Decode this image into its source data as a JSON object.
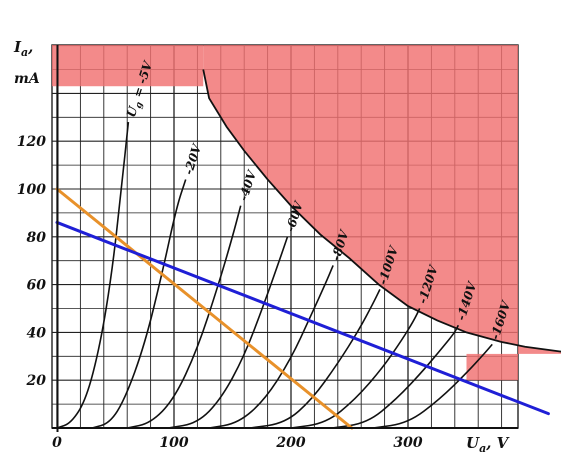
{
  "chart_data": {
    "type": "line",
    "title": "",
    "ylabel_line1": "I",
    "ylabel_sub": "a",
    "ylabel_comma": ",",
    "ylabel_unit": "mA",
    "xlabel_main": "U",
    "xlabel_sub": "a",
    "xlabel_unit": ", V",
    "xlim": [
      0,
      390
    ],
    "ylim": [
      0,
      160
    ],
    "x_ticks": [
      {
        "value": 0,
        "label": "0"
      },
      {
        "value": 100,
        "label": "100"
      },
      {
        "value": 200,
        "label": "200"
      },
      {
        "value": 300,
        "label": "300"
      }
    ],
    "y_ticks": [
      {
        "value": 20,
        "label": "20"
      },
      {
        "value": 40,
        "label": "40"
      },
      {
        "value": 60,
        "label": "60"
      },
      {
        "value": 80,
        "label": "80"
      },
      {
        "value": 100,
        "label": "100"
      },
      {
        "value": 120,
        "label": "120"
      }
    ],
    "forbidden_region": {
      "color": "#f07070",
      "boundary": [
        [
          125,
          150
        ],
        [
          130,
          138
        ],
        [
          145,
          126
        ],
        [
          160,
          116
        ],
        [
          180,
          104
        ],
        [
          200,
          93
        ],
        [
          225,
          81
        ],
        [
          250,
          71
        ],
        [
          275,
          60
        ],
        [
          300,
          51
        ],
        [
          325,
          45
        ],
        [
          350,
          40
        ],
        [
          380,
          36
        ],
        [
          400,
          34
        ],
        [
          430,
          32
        ],
        [
          460,
          31
        ],
        [
          480,
          31
        ]
      ]
    },
    "curve_label_prefix": "U",
    "curve_label_sub": "g",
    "series": [
      {
        "label": "= -5V",
        "points": [
          [
            0,
            0
          ],
          [
            12,
            2
          ],
          [
            25,
            12
          ],
          [
            37,
            35
          ],
          [
            47,
            65
          ],
          [
            55,
            100
          ],
          [
            61,
            128
          ]
        ]
      },
      {
        "label": "-20V",
        "points": [
          [
            30,
            0
          ],
          [
            45,
            2
          ],
          [
            58,
            12
          ],
          [
            75,
            35
          ],
          [
            90,
            65
          ],
          [
            102,
            92
          ],
          [
            110,
            104
          ]
        ]
      },
      {
        "label": "-40V",
        "points": [
          [
            60,
            0
          ],
          [
            80,
            2
          ],
          [
            100,
            12
          ],
          [
            120,
            33
          ],
          [
            138,
            60
          ],
          [
            150,
            80
          ],
          [
            157,
            93
          ]
        ]
      },
      {
        "label": "-60V",
        "points": [
          [
            95,
            0
          ],
          [
            120,
            2
          ],
          [
            140,
            12
          ],
          [
            160,
            30
          ],
          [
            177,
            52
          ],
          [
            190,
            70
          ],
          [
            197,
            80
          ]
        ]
      },
      {
        "label": "-80V",
        "points": [
          [
            130,
            0
          ],
          [
            155,
            2
          ],
          [
            178,
            12
          ],
          [
            200,
            29
          ],
          [
            217,
            47
          ],
          [
            230,
            61
          ],
          [
            236,
            68
          ]
        ]
      },
      {
        "label": "-100V",
        "points": [
          [
            165,
            0
          ],
          [
            195,
            2
          ],
          [
            218,
            12
          ],
          [
            240,
            27
          ],
          [
            258,
            41
          ],
          [
            270,
            52
          ],
          [
            276,
            58
          ]
        ]
      },
      {
        "label": "-120V",
        "points": [
          [
            200,
            0
          ],
          [
            230,
            2
          ],
          [
            255,
            12
          ],
          [
            278,
            25
          ],
          [
            295,
            37
          ],
          [
            305,
            45
          ],
          [
            310,
            50
          ]
        ]
      },
      {
        "label": "-140V",
        "points": [
          [
            235,
            0
          ],
          [
            265,
            2
          ],
          [
            290,
            12
          ],
          [
            313,
            24
          ],
          [
            330,
            34
          ],
          [
            340,
            40
          ],
          [
            343,
            43
          ]
        ]
      },
      {
        "label": "-160V",
        "points": [
          [
            270,
            0
          ],
          [
            300,
            2
          ],
          [
            327,
            12
          ],
          [
            350,
            23
          ],
          [
            365,
            31
          ],
          [
            372,
            35
          ]
        ]
      }
    ],
    "load_lines": [
      {
        "color": "#e8912a",
        "points": [
          [
            0,
            100
          ],
          [
            252,
            0
          ]
        ]
      },
      {
        "color": "#1f1fd6",
        "points": [
          [
            0,
            86
          ],
          [
            420,
            6
          ]
        ]
      }
    ]
  }
}
